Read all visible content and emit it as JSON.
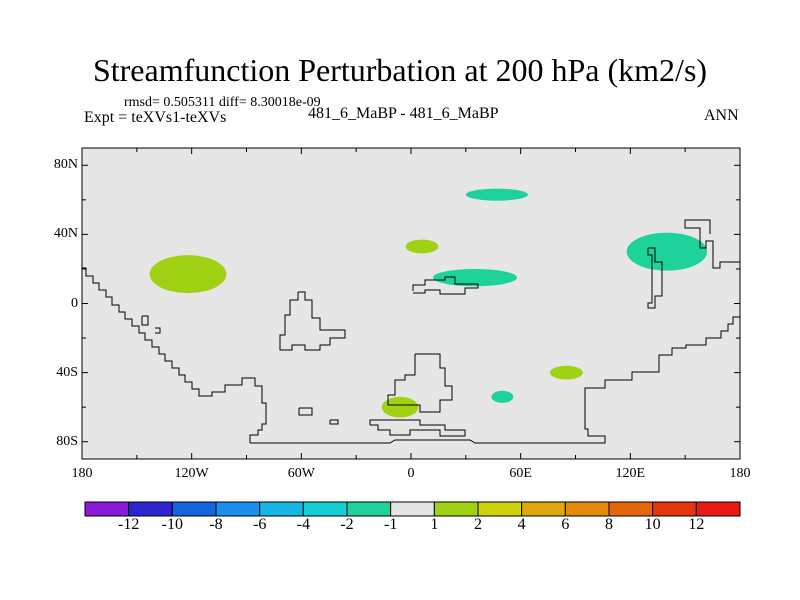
{
  "title": "Streamfunction Perturbation at 200 hPa (km2/s)",
  "stats_line": "rmsd= 0.505311 diff= 8.30018e-09",
  "experiment_label": "Expt = teXVs1-teXVs",
  "case_label": "481_6_MaBP - 481_6_MaBP",
  "season_label": "ANN",
  "map": {
    "projection": "cylindrical equidistant",
    "lon_range": [
      -180,
      180
    ],
    "lat_range": [
      -90,
      90
    ],
    "ocean_fill": "#e6e6e6",
    "coastline_color": "#000000",
    "y_axis_labels": [
      "80N",
      "40N",
      "0",
      "40S",
      "80S"
    ],
    "y_axis_values": [
      80,
      40,
      0,
      -40,
      -80
    ],
    "x_axis_labels": [
      "180",
      "120W",
      "60W",
      "0",
      "60E",
      "120E",
      "180"
    ],
    "x_axis_values": [
      -180,
      -120,
      -60,
      0,
      60,
      120,
      180
    ]
  },
  "anomaly_regions": [
    {
      "name": "east-pacific-north-anomaly",
      "center_lon": -122,
      "center_lat": 17,
      "half_width_lon": 21,
      "half_height_lat": 11,
      "color": "#a0d213"
    },
    {
      "name": "north-atlantic-anomaly",
      "center_lon": 6,
      "center_lat": 33,
      "half_width_lon": 9,
      "half_height_lat": 4,
      "color": "#a0d213"
    },
    {
      "name": "south-atlantic-anomaly",
      "center_lon": -6,
      "center_lat": -60,
      "half_width_lon": 10,
      "half_height_lat": 6,
      "color": "#a0d213"
    },
    {
      "name": "indian-ocean-anomaly",
      "center_lon": 85,
      "center_lat": -40,
      "half_width_lon": 9,
      "half_height_lat": 4,
      "color": "#a0d213"
    },
    {
      "name": "arctic-europe-anomaly",
      "center_lon": 47,
      "center_lat": 63,
      "half_width_lon": 17,
      "half_height_lat": 3.5,
      "color": "#1ed39b"
    },
    {
      "name": "mediterranean-anomaly",
      "center_lon": 35,
      "center_lat": 15,
      "half_width_lon": 23,
      "half_height_lat": 5,
      "color": "#1ed39b"
    },
    {
      "name": "southern-ocean-anomaly",
      "center_lon": 50,
      "center_lat": -54,
      "half_width_lon": 6,
      "half_height_lat": 3.5,
      "color": "#1ed39b"
    },
    {
      "name": "east-asia-anomaly",
      "center_lon": 140,
      "center_lat": 30,
      "half_width_lon": 22,
      "half_height_lat": 11,
      "color": "#1ed39b"
    }
  ],
  "colorbar": {
    "colors": [
      "#8b1bd8",
      "#2c24d0",
      "#1464e0",
      "#1b8ef0",
      "#16b8e3",
      "#14cfd4",
      "#1ed39b",
      "#e6e6e6",
      "#a0d213",
      "#cdd20c",
      "#e0a80c",
      "#e58a0b",
      "#e8660b",
      "#e5350e",
      "#e81b14"
    ],
    "labels": [
      "-12",
      "-10",
      "-8",
      "-6",
      "-4",
      "-2",
      "-1",
      "1",
      "2",
      "4",
      "6",
      "8",
      "10",
      "12"
    ]
  }
}
